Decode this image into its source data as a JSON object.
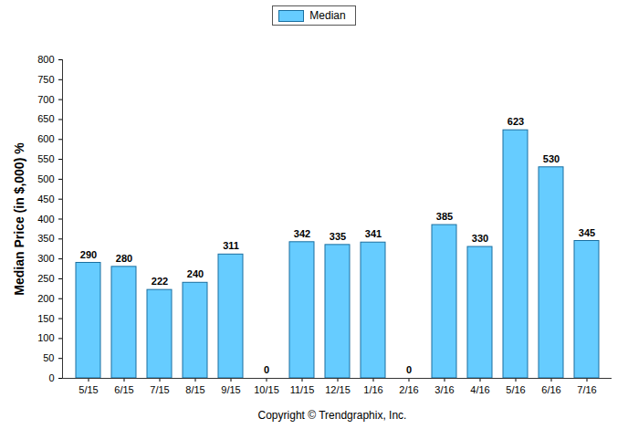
{
  "chart_data": {
    "type": "bar",
    "categories": [
      "5/15",
      "6/15",
      "7/15",
      "8/15",
      "9/15",
      "10/15",
      "11/15",
      "12/15",
      "1/16",
      "2/16",
      "3/16",
      "4/16",
      "5/16",
      "6/16",
      "7/16"
    ],
    "series": [
      {
        "name": "Median",
        "color": "#66ccff",
        "values": [
          290,
          280,
          222,
          240,
          311,
          0,
          342,
          335,
          341,
          0,
          385,
          330,
          623,
          530,
          345
        ]
      }
    ],
    "y_label": "Median Price (in $,000) %",
    "caption": "Copyright © Trendgraphix, Inc.",
    "ylim": [
      0,
      800
    ],
    "yticks": [
      0,
      50,
      100,
      150,
      200,
      250,
      300,
      350,
      400,
      450,
      500,
      550,
      600,
      650,
      700,
      750,
      800
    ],
    "grid": false,
    "legend": "top",
    "data_labels": true
  }
}
